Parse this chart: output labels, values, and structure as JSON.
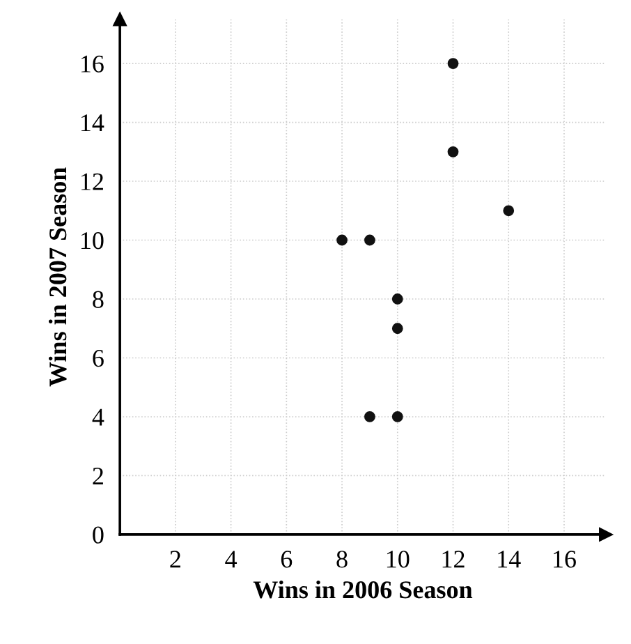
{
  "chart_data": {
    "type": "scatter",
    "xlabel": "Wins in 2006 Season",
    "ylabel": "Wins in 2007 Season",
    "x": [
      8,
      9,
      12,
      12,
      14,
      10,
      10,
      9,
      10
    ],
    "series": [
      {
        "color": "#111111",
        "values": [
          10,
          10,
          16,
          13,
          11,
          8,
          7,
          4,
          4
        ]
      }
    ],
    "xlim": [
      0,
      17.5
    ],
    "ylim": [
      0,
      17.5
    ],
    "xticks": [
      2,
      4,
      6,
      8,
      10,
      12,
      14,
      16
    ],
    "yticks": [
      0,
      2,
      4,
      6,
      8,
      10,
      12,
      14,
      16
    ],
    "grid": true,
    "marker": "circle"
  }
}
